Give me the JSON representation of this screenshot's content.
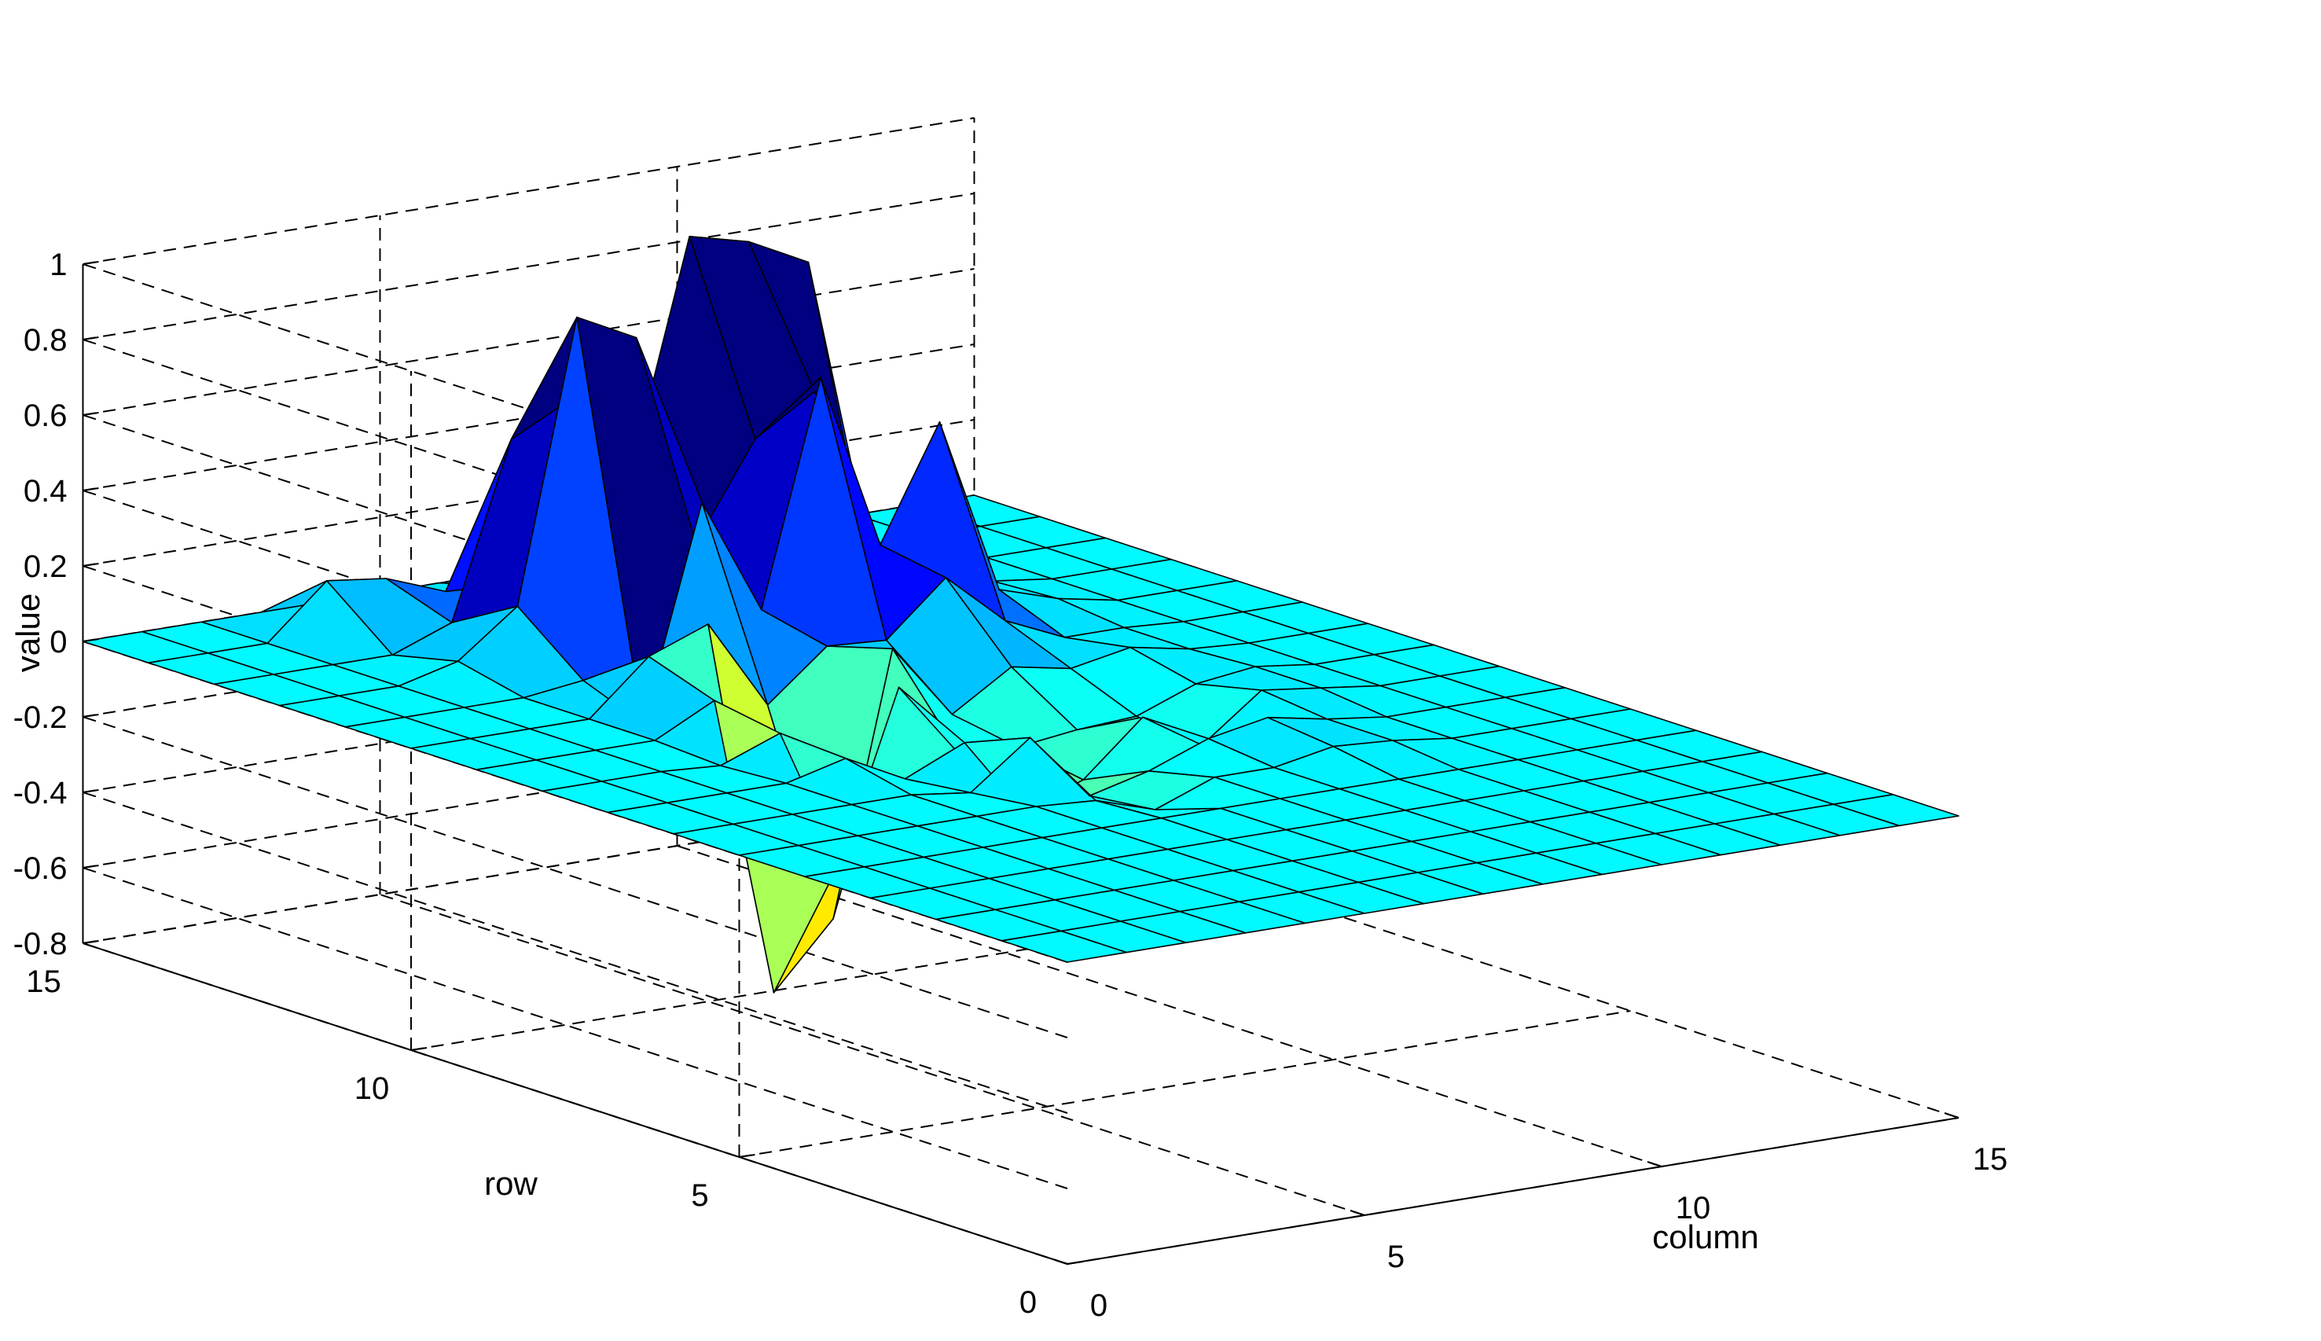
{
  "chart_data": {
    "type": "surface3d",
    "title": "",
    "xlabel": "column",
    "ylabel": "row",
    "zlabel": "value",
    "xlim": [
      0,
      15
    ],
    "ylim": [
      0,
      15
    ],
    "zlim": [
      -0.8,
      1
    ],
    "xticks": [
      "0",
      "5",
      "10",
      "15"
    ],
    "yticks": [
      "0",
      "5",
      "10",
      "15"
    ],
    "zticks": [
      "-0.8",
      "-0.6",
      "-0.4",
      "-0.2",
      "0",
      "0.2",
      "0.4",
      "0.6",
      "0.8",
      "1"
    ],
    "grid": true,
    "colormap": "jet",
    "x": [
      0,
      1,
      2,
      3,
      4,
      5,
      6,
      7,
      8,
      9,
      10,
      11,
      12,
      13,
      14,
      15
    ],
    "y": [
      0,
      1,
      2,
      3,
      4,
      5,
      6,
      7,
      8,
      9,
      10,
      11,
      12,
      13,
      14,
      15
    ],
    "z": [
      [
        0,
        0,
        0,
        0,
        0,
        0,
        0,
        0,
        0,
        0,
        0,
        0,
        0,
        0,
        0,
        0
      ],
      [
        0,
        0,
        0,
        0,
        0,
        0,
        0,
        0,
        0,
        0,
        0,
        0,
        0,
        0,
        0,
        0
      ],
      [
        0,
        0,
        0,
        0,
        0,
        0,
        0,
        0,
        0,
        0,
        0,
        0,
        0,
        0,
        0,
        0
      ],
      [
        0,
        0,
        0,
        0,
        0,
        0,
        0,
        0,
        0,
        0,
        0,
        0,
        0,
        0,
        0,
        0
      ],
      [
        0,
        0,
        0,
        0,
        0,
        0,
        0,
        0,
        0,
        0,
        0,
        0,
        0,
        0,
        0,
        0
      ],
      [
        0,
        0,
        0,
        0,
        0,
        0,
        -0.01,
        -0.06,
        0,
        0,
        0.03,
        0.02,
        0,
        0,
        0,
        0
      ],
      [
        0,
        0,
        0,
        0,
        0,
        -0.02,
        0.1,
        -0.08,
        -0.04,
        0.02,
        0.05,
        0.02,
        0,
        0,
        0,
        0
      ],
      [
        0,
        0,
        0,
        0,
        0.04,
        -0.04,
        0.03,
        -0.18,
        -0.12,
        0.02,
        -0.08,
        0.04,
        0.02,
        0,
        0,
        0
      ],
      [
        0,
        0,
        0,
        -0.01,
        0.05,
        -0.32,
        0.12,
        -0.08,
        -0.09,
        -0.07,
        -0.06,
        0.0,
        0.02,
        0,
        0,
        0
      ],
      [
        0,
        0,
        0,
        0,
        0.08,
        -0.72,
        -0.55,
        0.14,
        -0.06,
        0.04,
        0.01,
        0.04,
        0.01,
        0,
        0,
        0
      ],
      [
        0,
        0,
        0,
        0,
        0.14,
        0.2,
        -0.04,
        0.09,
        0.08,
        0.22,
        0.08,
        0.01,
        0.01,
        0,
        0,
        0
      ],
      [
        0,
        0,
        0,
        0,
        0.02,
        -0.12,
        0.44,
        0.13,
        0.72,
        0.25,
        0.55,
        0.08,
        0.03,
        0,
        0,
        0
      ],
      [
        0,
        0,
        0,
        0.04,
        0.16,
        0.9,
        0.82,
        0.25,
        0.5,
        0.6,
        0.1,
        -0.04,
        0.02,
        0,
        0,
        0
      ],
      [
        0,
        0,
        0,
        0,
        0.06,
        0.52,
        0.6,
        0.38,
        0.98,
        0.94,
        0.86,
        0.05,
        0.01,
        0,
        0,
        0
      ],
      [
        0,
        0,
        0,
        0.14,
        0.12,
        0.06,
        0.05,
        0.04,
        0.03,
        0.02,
        0.01,
        0.01,
        0,
        0,
        0,
        0
      ],
      [
        0,
        0,
        0,
        0,
        0,
        0,
        0,
        0,
        0,
        0,
        0,
        0,
        0,
        0,
        0,
        0
      ]
    ]
  }
}
